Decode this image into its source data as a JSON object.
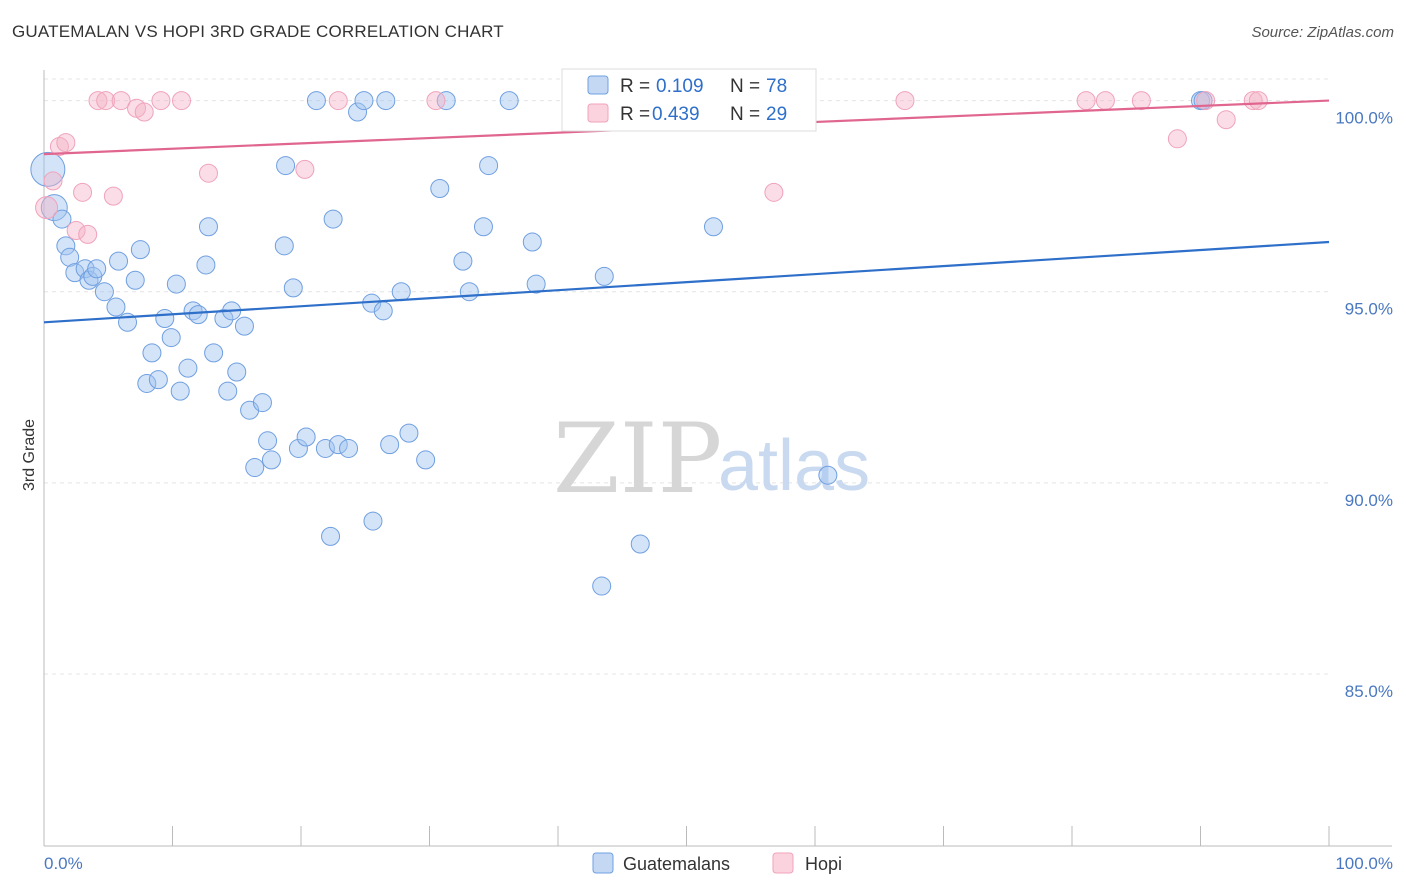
{
  "title": "GUATEMALAN VS HOPI 3RD GRADE CORRELATION CHART",
  "source": "Source: ZipAtlas.com",
  "colors": {
    "blue": "#6f9fe0",
    "blue_line": "#2e6fc9",
    "pink": "#f0a3bb",
    "pink_line": "#e0668f",
    "label": "#4a78c0"
  },
  "watermark": {
    "zip": "ZIP",
    "atlas": "atlas"
  },
  "legend": {
    "r_label": "R =",
    "n_label": "N =",
    "rows": [
      {
        "r": "0.109",
        "n": "78"
      },
      {
        "r": "0.439",
        "n": "29"
      }
    ]
  },
  "chart_data": {
    "type": "scatter",
    "ylabel": "3rd Grade",
    "xlim": [
      0,
      100
    ],
    "ylim": [
      80.5,
      100.8
    ],
    "x_tick_labels": [
      "0.0%",
      "100.0%"
    ],
    "y_ticks": [
      85,
      90,
      95,
      100
    ],
    "y_tick_labels": [
      "85.0%",
      "90.0%",
      "95.0%",
      "100.0%"
    ],
    "grid": true,
    "legend_position": "bottom-center",
    "series": [
      {
        "name": "Guatemalans",
        "color": "#6f9fe0",
        "trend": {
          "x": [
            0,
            100
          ],
          "y": [
            94.2,
            96.3
          ]
        },
        "points": [
          [
            0.3,
            98.2
          ],
          [
            0.8,
            97.2
          ],
          [
            1.4,
            96.9
          ],
          [
            1.7,
            96.2
          ],
          [
            2.0,
            95.9
          ],
          [
            2.4,
            95.5
          ],
          [
            3.2,
            95.6
          ],
          [
            3.5,
            95.3
          ],
          [
            3.8,
            95.4
          ],
          [
            4.1,
            95.6
          ],
          [
            4.7,
            95.0
          ],
          [
            5.8,
            95.8
          ],
          [
            5.6,
            94.6
          ],
          [
            6.5,
            94.2
          ],
          [
            7.1,
            95.3
          ],
          [
            7.5,
            96.1
          ],
          [
            8.0,
            92.6
          ],
          [
            8.4,
            93.4
          ],
          [
            8.9,
            92.7
          ],
          [
            9.4,
            94.3
          ],
          [
            9.9,
            93.8
          ],
          [
            10.3,
            95.2
          ],
          [
            10.6,
            92.4
          ],
          [
            11.2,
            93.0
          ],
          [
            11.6,
            94.5
          ],
          [
            12.0,
            94.4
          ],
          [
            12.6,
            95.7
          ],
          [
            12.8,
            96.7
          ],
          [
            13.2,
            93.4
          ],
          [
            14.0,
            94.3
          ],
          [
            14.3,
            92.4
          ],
          [
            14.6,
            94.5
          ],
          [
            15.0,
            92.9
          ],
          [
            15.6,
            94.1
          ],
          [
            16.0,
            91.9
          ],
          [
            16.4,
            90.4
          ],
          [
            17.0,
            92.1
          ],
          [
            17.4,
            91.1
          ],
          [
            17.7,
            90.6
          ],
          [
            18.7,
            96.2
          ],
          [
            18.8,
            98.3
          ],
          [
            19.4,
            95.1
          ],
          [
            19.8,
            90.9
          ],
          [
            20.4,
            91.2
          ],
          [
            21.2,
            100.0
          ],
          [
            21.9,
            90.9
          ],
          [
            22.3,
            88.6
          ],
          [
            22.5,
            96.9
          ],
          [
            22.9,
            91.0
          ],
          [
            23.7,
            90.9
          ],
          [
            24.4,
            99.7
          ],
          [
            24.9,
            100.0
          ],
          [
            25.5,
            94.7
          ],
          [
            25.6,
            89.0
          ],
          [
            26.4,
            94.5
          ],
          [
            26.6,
            100.0
          ],
          [
            26.9,
            91.0
          ],
          [
            27.8,
            95.0
          ],
          [
            28.4,
            91.3
          ],
          [
            29.7,
            90.6
          ],
          [
            30.8,
            97.7
          ],
          [
            31.3,
            100.0
          ],
          [
            32.6,
            95.8
          ],
          [
            33.1,
            95.0
          ],
          [
            34.2,
            96.7
          ],
          [
            34.6,
            98.3
          ],
          [
            36.2,
            100.0
          ],
          [
            38.0,
            96.3
          ],
          [
            38.3,
            95.2
          ],
          [
            43.4,
            87.3
          ],
          [
            43.6,
            95.4
          ],
          [
            46.4,
            88.4
          ],
          [
            52.1,
            96.7
          ],
          [
            56.6,
            100.0
          ],
          [
            58.5,
            100.0
          ],
          [
            61.0,
            90.2
          ],
          [
            90.0,
            100.0
          ],
          [
            90.2,
            100.0
          ]
        ]
      },
      {
        "name": "Hopi",
        "color": "#f0a3bb",
        "trend": {
          "x": [
            0,
            100
          ],
          "y": [
            98.6,
            100.0
          ]
        },
        "points": [
          [
            0.2,
            97.2
          ],
          [
            0.7,
            97.9
          ],
          [
            1.2,
            98.8
          ],
          [
            1.7,
            98.9
          ],
          [
            2.5,
            96.6
          ],
          [
            3.0,
            97.6
          ],
          [
            3.4,
            96.5
          ],
          [
            4.2,
            100.0
          ],
          [
            4.8,
            100.0
          ],
          [
            5.4,
            97.5
          ],
          [
            6.0,
            100.0
          ],
          [
            7.2,
            99.8
          ],
          [
            7.8,
            99.7
          ],
          [
            9.1,
            100.0
          ],
          [
            10.7,
            100.0
          ],
          [
            12.8,
            98.1
          ],
          [
            20.3,
            98.2
          ],
          [
            22.9,
            100.0
          ],
          [
            30.5,
            100.0
          ],
          [
            56.8,
            97.6
          ],
          [
            67.0,
            100.0
          ],
          [
            81.1,
            100.0
          ],
          [
            82.6,
            100.0
          ],
          [
            85.4,
            100.0
          ],
          [
            88.2,
            99.0
          ],
          [
            90.4,
            100.0
          ],
          [
            92.0,
            99.5
          ],
          [
            94.1,
            100.0
          ],
          [
            94.5,
            100.0
          ]
        ]
      }
    ]
  }
}
